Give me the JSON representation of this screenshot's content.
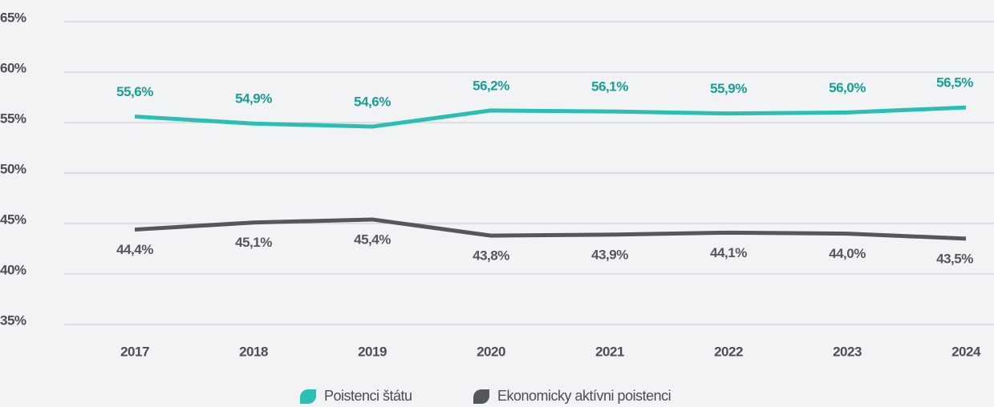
{
  "chart_data": {
    "type": "line",
    "categories": [
      "2017",
      "2018",
      "2019",
      "2020",
      "2021",
      "2022",
      "2023",
      "2024"
    ],
    "series": [
      {
        "name": "Poistenci štátu",
        "color": "#2bbfb3",
        "label_color": "#17a095",
        "values": [
          55.6,
          54.9,
          54.6,
          56.2,
          56.1,
          55.9,
          56.0,
          56.5
        ],
        "value_labels": [
          "55,6%",
          "54,9%",
          "54,6%",
          "56,2%",
          "56,1%",
          "55,9%",
          "56,0%",
          "56,5%"
        ]
      },
      {
        "name": "Ekonomicky aktívni poistenci",
        "color": "#54585c",
        "label_color": "#54585c",
        "values": [
          44.4,
          45.1,
          45.4,
          43.8,
          43.9,
          44.1,
          44.0,
          43.5
        ],
        "value_labels": [
          "44,4%",
          "45,1%",
          "45,4%",
          "43,8%",
          "43,9%",
          "44,1%",
          "44,0%",
          "43,5%"
        ]
      }
    ],
    "ylim": [
      35,
      65
    ],
    "yticks": [
      {
        "value": 35,
        "label": "35%"
      },
      {
        "value": 40,
        "label": "40%"
      },
      {
        "value": 45,
        "label": "45%"
      },
      {
        "value": 50,
        "label": "50%"
      },
      {
        "value": 55,
        "label": "55%"
      },
      {
        "value": 60,
        "label": "60%"
      },
      {
        "value": 65,
        "label": "65%"
      }
    ],
    "grid": true
  }
}
